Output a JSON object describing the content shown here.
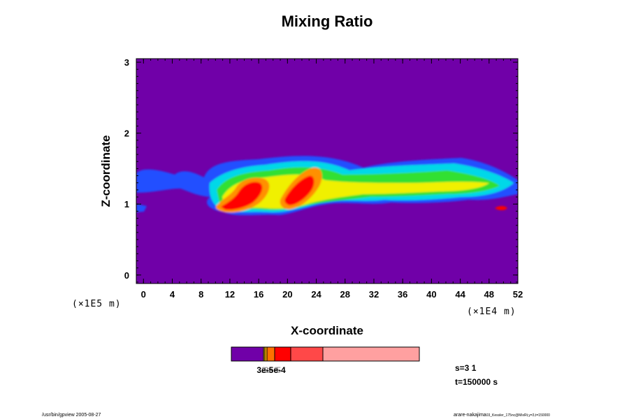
{
  "chart_data": {
    "type": "heatmap",
    "title": "Mixing Ratio",
    "xlabel": "X-coordinate",
    "ylabel": "Z-coordinate",
    "x_scale_label": "(×1E4 m)",
    "y_scale_label": "(×1E5 m)",
    "xlim": [
      -1,
      52
    ],
    "ylim": [
      -0.12,
      3.05
    ],
    "x_ticks": [
      "0",
      "4",
      "8",
      "12",
      "16",
      "20",
      "24",
      "28",
      "32",
      "36",
      "40",
      "44",
      "48",
      "52"
    ],
    "y_ticks": [
      "0",
      "1",
      "2",
      "3"
    ],
    "background_color": "#7000a8",
    "colorbar": {
      "colors": [
        "#7000a8",
        "#d8b800",
        "#ffb000",
        "#ff7000",
        "#ff0000",
        "#ff4848",
        "#ffa0a0"
      ],
      "label": "3e-5e-4",
      "labels_overlapping": [
        "2e-6",
        "3e-5",
        "5e-4"
      ]
    },
    "cloud_band": {
      "x_range": [
        -1,
        52
      ],
      "z_range": [
        0.85,
        1.7
      ],
      "max_regions": [
        {
          "x": [
            10,
            16
          ],
          "z": [
            0.9,
            1.35
          ]
        },
        {
          "x": [
            19,
            24
          ],
          "z": [
            0.95,
            1.55
          ]
        },
        {
          "x": [
            49,
            50
          ],
          "z": [
            0.9,
            0.97
          ]
        }
      ]
    }
  },
  "info": {
    "step": "s=3 1",
    "time": "t=150000 s"
  },
  "footer": {
    "left": "/usr/bin/gpview 2005-08-27",
    "right_main": "arare-nakajima",
    "right_small": "03_Kessler_175nc@MixRt,y=3,t=150000"
  }
}
